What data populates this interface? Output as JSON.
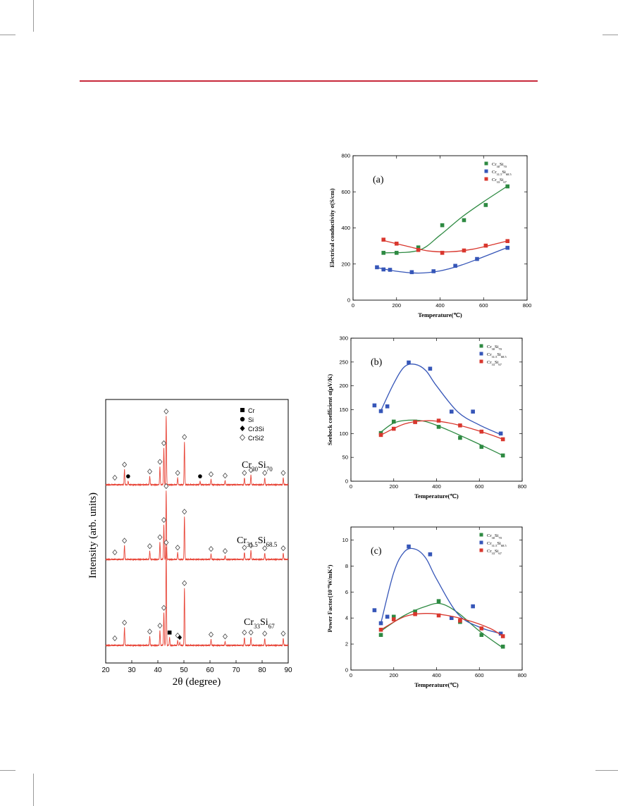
{
  "page": {
    "accent_color": "#c8283a"
  },
  "xrd": {
    "ylabel": "Intensity (arb. units)",
    "xlabel": "2θ (degree)",
    "xticks": [
      "20",
      "30",
      "40",
      "50",
      "60",
      "70",
      "80",
      "90"
    ],
    "legend": [
      {
        "symbol": "square",
        "label": "Cr"
      },
      {
        "symbol": "circle",
        "label": "Si"
      },
      {
        "symbol": "diamond",
        "label": "Cr3Si"
      },
      {
        "symbol": "open-diamond",
        "label": "CrSi2"
      }
    ],
    "trace_color": "#e8473a"
  },
  "chart_data": [
    {
      "type": "line",
      "panel": "xrd",
      "xlabel": "2θ (degree)",
      "ylabel": "Intensity (arb. units)",
      "xlim": [
        20,
        90
      ],
      "legend_position": "top-right",
      "series": [
        {
          "name_parts": [
            "Cr",
            "30",
            "Si",
            "70"
          ],
          "peaks": [
            {
              "x": 27.2,
              "h": 0.22,
              "m": "CrSi2"
            },
            {
              "x": 28.6,
              "h": 0.05,
              "m": "Si"
            },
            {
              "x": 36.9,
              "h": 0.12,
              "m": "CrSi2"
            },
            {
              "x": 40.8,
              "h": 0.26,
              "m": "CrSi2"
            },
            {
              "x": 42.3,
              "h": 0.53,
              "m": "CrSi2"
            },
            {
              "x": 43.2,
              "h": 1.0,
              "m": "CrSi2"
            },
            {
              "x": 47.6,
              "h": 0.1,
              "m": "CrSi2"
            },
            {
              "x": 50.2,
              "h": 0.62,
              "m": "CrSi2"
            },
            {
              "x": 56.2,
              "h": 0.05,
              "m": "Si"
            },
            {
              "x": 60.4,
              "h": 0.08,
              "m": "CrSi2"
            },
            {
              "x": 65.8,
              "h": 0.06,
              "m": "CrSi2"
            },
            {
              "x": 73.2,
              "h": 0.1,
              "m": "CrSi2"
            },
            {
              "x": 75.7,
              "h": 0.14,
              "m": "CrSi2"
            },
            {
              "x": 81.0,
              "h": 0.1,
              "m": "CrSi2"
            },
            {
              "x": 88.1,
              "h": 0.1,
              "m": "CrSi2"
            },
            {
              "x": 23.5,
              "h": 0.0,
              "m": "CrSi2"
            }
          ]
        },
        {
          "name_parts": [
            "Cr",
            "31.5",
            "Si",
            "68.5"
          ],
          "peaks": [
            {
              "x": 27.2,
              "h": 0.2,
              "m": "CrSi2"
            },
            {
              "x": 36.9,
              "h": 0.12,
              "m": "CrSi2"
            },
            {
              "x": 40.8,
              "h": 0.25,
              "m": "CrSi2"
            },
            {
              "x": 42.3,
              "h": 0.5,
              "m": "CrSi2"
            },
            {
              "x": 43.2,
              "h": 1.0,
              "m": "CrSi2"
            },
            {
              "x": 47.6,
              "h": 0.1,
              "m": "CrSi2"
            },
            {
              "x": 50.2,
              "h": 0.62,
              "m": "CrSi2"
            },
            {
              "x": 60.4,
              "h": 0.08,
              "m": "CrSi2"
            },
            {
              "x": 65.8,
              "h": 0.05,
              "m": "CrSi2"
            },
            {
              "x": 73.2,
              "h": 0.1,
              "m": "CrSi2"
            },
            {
              "x": 75.7,
              "h": 0.13,
              "m": "CrSi2"
            },
            {
              "x": 81.0,
              "h": 0.09,
              "m": "CrSi2"
            },
            {
              "x": 88.1,
              "h": 0.09,
              "m": "CrSi2"
            },
            {
              "x": 23.5,
              "h": 0.0,
              "m": "CrSi2"
            }
          ]
        },
        {
          "name_parts": [
            "Cr",
            "33",
            "Si",
            "67"
          ],
          "peaks": [
            {
              "x": 27.2,
              "h": 0.18,
              "m": "CrSi2"
            },
            {
              "x": 36.9,
              "h": 0.09,
              "m": "CrSi2"
            },
            {
              "x": 40.8,
              "h": 0.15,
              "m": "CrSi2"
            },
            {
              "x": 42.3,
              "h": 0.33,
              "m": "CrSi2"
            },
            {
              "x": 43.2,
              "h": 1.0,
              "m": "CrSi2"
            },
            {
              "x": 44.5,
              "h": 0.08,
              "m": "Cr"
            },
            {
              "x": 47.6,
              "h": 0.05,
              "m": "CrSi2"
            },
            {
              "x": 48.4,
              "h": 0.03,
              "m": "Cr3Si"
            },
            {
              "x": 50.2,
              "h": 0.58,
              "m": "CrSi2"
            },
            {
              "x": 60.4,
              "h": 0.06,
              "m": "CrSi2"
            },
            {
              "x": 65.8,
              "h": 0.04,
              "m": "CrSi2"
            },
            {
              "x": 73.2,
              "h": 0.08,
              "m": "CrSi2"
            },
            {
              "x": 75.7,
              "h": 0.08,
              "m": "CrSi2"
            },
            {
              "x": 81.0,
              "h": 0.07,
              "m": "CrSi2"
            },
            {
              "x": 88.1,
              "h": 0.07,
              "m": "CrSi2"
            },
            {
              "x": 23.5,
              "h": 0.0,
              "m": "CrSi2"
            }
          ]
        }
      ]
    },
    {
      "type": "scatter",
      "panel": "a",
      "panel_label": "(a)",
      "xlabel": "Temperature(℃)",
      "ylabel": "Electrical conductivity σ(S/cm)",
      "xlim": [
        0,
        800
      ],
      "ylim": [
        0,
        800
      ],
      "xticks": [
        0,
        200,
        400,
        600,
        800
      ],
      "yticks": [
        0,
        200,
        400,
        600,
        800
      ],
      "legend_position": "top-right",
      "series": [
        {
          "name_parts": [
            "Cr",
            "30",
            "Si",
            "70"
          ],
          "color": "#2e8a42",
          "x": [
            140,
            200,
            300,
            410,
            510,
            610,
            710
          ],
          "y": [
            262,
            262,
            292,
            415,
            443,
            527,
            630
          ],
          "fit_x": [
            140,
            300,
            400,
            500,
            600,
            710
          ],
          "fit_y": [
            262,
            275,
            360,
            460,
            545,
            632
          ]
        },
        {
          "name_parts": [
            "Cr",
            "31.5",
            "Si",
            "68.5"
          ],
          "color": "#3656b8",
          "x": [
            110,
            140,
            170,
            270,
            370,
            470,
            570,
            710
          ],
          "y": [
            182,
            170,
            168,
            155,
            160,
            190,
            228,
            290
          ],
          "fit_x": [
            110,
            200,
            300,
            400,
            500,
            600,
            710
          ],
          "fit_y": [
            180,
            160,
            150,
            162,
            195,
            240,
            292
          ]
        },
        {
          "name_parts": [
            "Cr",
            "33",
            "Si",
            "67"
          ],
          "color": "#d9372e",
          "x": [
            140,
            200,
            300,
            410,
            510,
            610,
            710
          ],
          "y": [
            335,
            313,
            278,
            262,
            275,
            302,
            327
          ],
          "fit_x": [
            140,
            250,
            350,
            450,
            550,
            650,
            710
          ],
          "fit_y": [
            330,
            298,
            272,
            268,
            282,
            310,
            328
          ]
        }
      ]
    },
    {
      "type": "scatter",
      "panel": "b",
      "panel_label": "(b)",
      "xlabel": "Temperature(℃)",
      "ylabel": "Seebeck coefficient α(μV/K)",
      "xlim": [
        0,
        800
      ],
      "ylim": [
        0,
        300
      ],
      "xticks": [
        0,
        200,
        400,
        600,
        800
      ],
      "yticks": [
        0,
        50,
        100,
        150,
        200,
        250,
        300
      ],
      "legend_position": "top-right",
      "series": [
        {
          "name_parts": [
            "Cr",
            "30",
            "Si",
            "70"
          ],
          "color": "#2e8a42",
          "x": [
            140,
            200,
            300,
            410,
            510,
            610,
            710
          ],
          "y": [
            101,
            125,
            125,
            114,
            91,
            72,
            54
          ],
          "fit_x": [
            140,
            200,
            270,
            350,
            450,
            550,
            650,
            710
          ],
          "fit_y": [
            103,
            122,
            128,
            125,
            108,
            88,
            67,
            54
          ]
        },
        {
          "name_parts": [
            "Cr",
            "31.5",
            "Si",
            "68.5"
          ],
          "color": "#3656b8",
          "x": [
            110,
            140,
            170,
            270,
            370,
            470,
            570,
            700
          ],
          "y": [
            159,
            147,
            157,
            249,
            236,
            146,
            146,
            100
          ],
          "fit_x": [
            140,
            200,
            250,
            300,
            350,
            400,
            500,
            600,
            700
          ],
          "fit_y": [
            148,
            205,
            240,
            245,
            232,
            200,
            145,
            118,
            98
          ]
        },
        {
          "name_parts": [
            "Cr",
            "33",
            "Si",
            "67"
          ],
          "color": "#d9372e",
          "x": [
            140,
            200,
            300,
            410,
            510,
            610,
            710
          ],
          "y": [
            97,
            110,
            124,
            127,
            117,
            104,
            88
          ],
          "fit_x": [
            140,
            250,
            350,
            450,
            550,
            650,
            710
          ],
          "fit_y": [
            97,
            120,
            127,
            123,
            112,
            98,
            88
          ]
        }
      ]
    },
    {
      "type": "scatter",
      "panel": "c",
      "panel_label": "(c)",
      "xlabel": "Temperature(℃)",
      "ylabel": "Power Factor(10 W/mK )",
      "ylabel_sup1": "-4",
      "ylabel_sup2": "2",
      "xlim": [
        0,
        800
      ],
      "ylim": [
        0,
        11
      ],
      "xticks": [
        0,
        200,
        400,
        600,
        800
      ],
      "yticks": [
        0,
        2,
        4,
        6,
        8,
        10
      ],
      "legend_position": "top-right",
      "series": [
        {
          "name_parts": [
            "Cr",
            "30",
            "Si",
            "70"
          ],
          "color": "#2e8a42",
          "x": [
            140,
            200,
            300,
            410,
            510,
            610,
            710
          ],
          "y": [
            2.7,
            4.1,
            4.5,
            5.3,
            3.7,
            2.7,
            1.8
          ],
          "fit_x": [
            140,
            250,
            350,
            420,
            500,
            600,
            710
          ],
          "fit_y": [
            3.0,
            4.2,
            4.9,
            5.1,
            4.4,
            3.0,
            1.7
          ]
        },
        {
          "name_parts": [
            "Cr",
            "31.5",
            "Si",
            "68.5"
          ],
          "color": "#3656b8",
          "x": [
            110,
            140,
            170,
            270,
            370,
            470,
            570,
            700
          ],
          "y": [
            4.6,
            3.6,
            4.1,
            9.5,
            8.9,
            4.0,
            4.9,
            2.8
          ],
          "fit_x": [
            140,
            200,
            250,
            300,
            350,
            400,
            500,
            600,
            700
          ],
          "fit_y": [
            3.6,
            7.5,
            9.1,
            9.3,
            8.6,
            7.0,
            4.3,
            3.3,
            2.8
          ]
        },
        {
          "name_parts": [
            "Cr",
            "33",
            "Si",
            "67"
          ],
          "color": "#d9372e",
          "x": [
            140,
            200,
            300,
            410,
            510,
            610,
            710
          ],
          "y": [
            3.1,
            3.9,
            4.3,
            4.2,
            3.8,
            3.2,
            2.6
          ],
          "fit_x": [
            140,
            250,
            350,
            450,
            550,
            650,
            710
          ],
          "fit_y": [
            3.1,
            4.1,
            4.35,
            4.2,
            3.8,
            3.2,
            2.6
          ]
        }
      ]
    }
  ]
}
